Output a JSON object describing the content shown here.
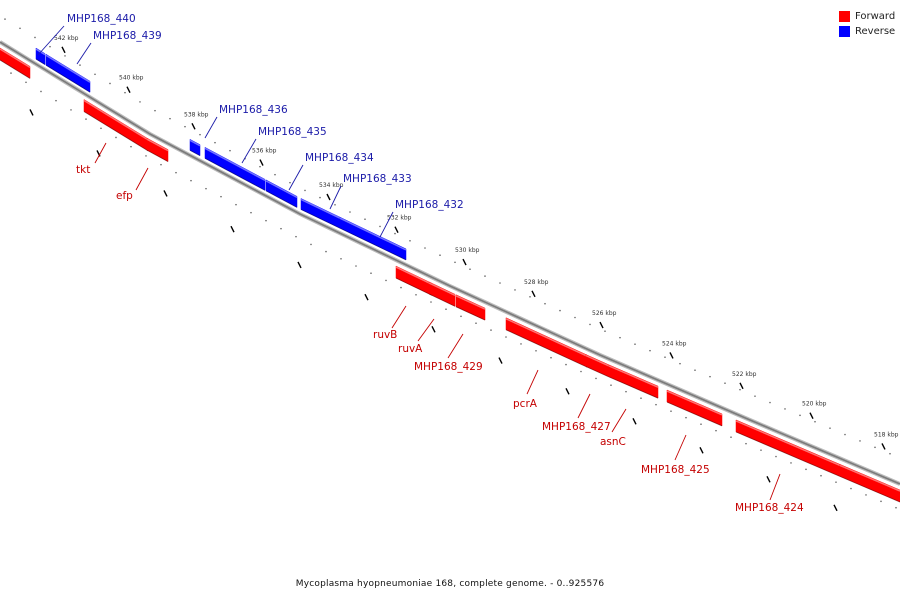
{
  "legend": [
    {
      "label": "Forward",
      "color": "#ff0000"
    },
    {
      "label": "Reverse",
      "color": "#0000ff"
    }
  ],
  "caption": "Mycoplasma hyopneumoniae 168, complete genome. - 0..925576",
  "colors": {
    "forward": "#ff0000",
    "reverse": "#0000ff",
    "forward_label": "#c40000",
    "reverse_label": "#1a1aa8",
    "backbone": "#7a7a7a"
  },
  "ticks": [
    "542 kbp",
    "540 kbp",
    "538 kbp",
    "536 kbp",
    "534 kbp",
    "532 kbp",
    "530 kbp",
    "528 kbp",
    "526 kbp",
    "524 kbp",
    "522 kbp",
    "520 kbp",
    "518 kbp"
  ],
  "reverse_genes": [
    "MHP168_440",
    "MHP168_439",
    "MHP168_436",
    "MHP168_435",
    "MHP168_434",
    "MHP168_433",
    "MHP168_432"
  ],
  "forward_genes": [
    "tkt",
    "efp",
    "ruvB",
    "ruvA",
    "MHP168_429",
    "pcrA",
    "MHP168_427",
    "asnC",
    "MHP168_425",
    "MHP168_424"
  ]
}
